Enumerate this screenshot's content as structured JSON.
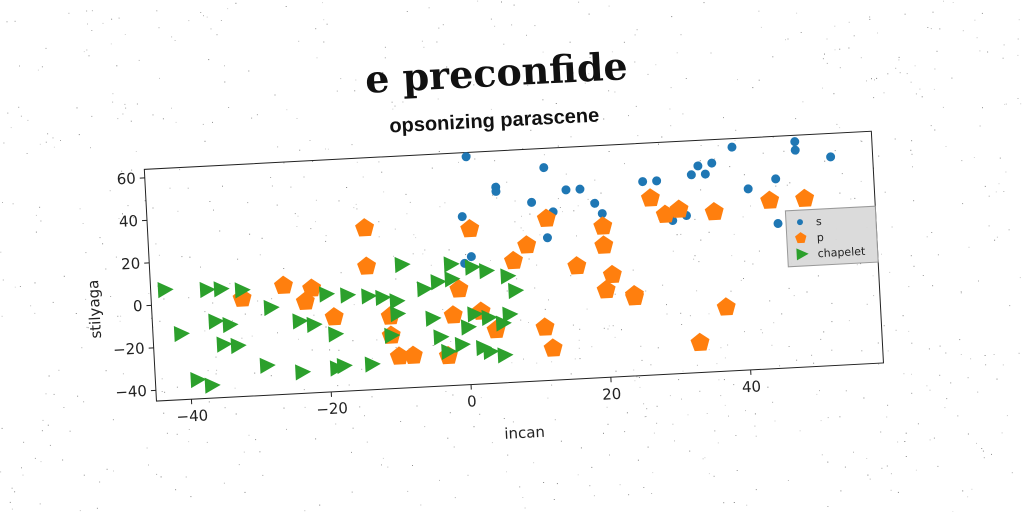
{
  "chart_data": {
    "type": "scatter",
    "suptitle": "e preconfide",
    "title": "opsonizing parascene",
    "xlabel": "incan",
    "ylabel": "stilyaga",
    "xlim": [
      -45,
      59
    ],
    "ylim": [
      -45,
      64
    ],
    "xticks": [
      -40,
      -20,
      0,
      20,
      40
    ],
    "yticks": [
      -40,
      -20,
      0,
      20,
      40,
      60
    ],
    "grid": false,
    "legend_position": "right",
    "series": [
      {
        "name": "s",
        "marker": "circle",
        "color": "#1f77b4",
        "points": [
          [
            1,
            62
          ],
          [
            12,
            55
          ],
          [
            39,
            60
          ],
          [
            48,
            61
          ],
          [
            53,
            53
          ],
          [
            48,
            57
          ],
          [
            5,
            47
          ],
          [
            5,
            45
          ],
          [
            15,
            44
          ],
          [
            17,
            44
          ],
          [
            26,
            46
          ],
          [
            28,
            46
          ],
          [
            33,
            48
          ],
          [
            35,
            48
          ],
          [
            36,
            53
          ],
          [
            34,
            52
          ],
          [
            45,
            44
          ],
          [
            10,
            39
          ],
          [
            19,
            37
          ],
          [
            13,
            34
          ],
          [
            0,
            34
          ],
          [
            20,
            32
          ],
          [
            30,
            27
          ],
          [
            32,
            29
          ],
          [
            41,
            40
          ],
          [
            0,
            12
          ],
          [
            1,
            15
          ],
          [
            12,
            22
          ],
          [
            45,
            23
          ]
        ]
      },
      {
        "name": "p",
        "marker": "pentagon",
        "color": "#ff7f0e",
        "points": [
          [
            -14,
            31
          ],
          [
            1,
            28
          ],
          [
            12,
            31
          ],
          [
            20,
            26
          ],
          [
            27,
            38
          ],
          [
            29,
            30
          ],
          [
            31,
            32
          ],
          [
            36,
            30
          ],
          [
            44,
            34
          ],
          [
            49,
            34
          ],
          [
            9,
            19
          ],
          [
            7,
            12
          ],
          [
            20,
            17
          ],
          [
            -14,
            13
          ],
          [
            -32,
            1
          ],
          [
            -26,
            6
          ],
          [
            -22,
            4
          ],
          [
            -23,
            -2
          ],
          [
            -19,
            -10
          ],
          [
            -11,
            -11
          ],
          [
            -2,
            -12
          ],
          [
            -1,
            0
          ],
          [
            2,
            -11
          ],
          [
            16,
            8
          ],
          [
            21,
            3
          ],
          [
            20,
            -4
          ],
          [
            24,
            -7
          ],
          [
            24,
            -8
          ],
          [
            37,
            -15
          ],
          [
            -11,
            -20
          ],
          [
            4,
            -20
          ],
          [
            -10,
            -30
          ],
          [
            -8,
            -30
          ],
          [
            -3,
            -31
          ],
          [
            11,
            -20
          ],
          [
            12,
            -30
          ],
          [
            33,
            -31
          ]
        ]
      },
      {
        "name": "chapelet",
        "marker": "triangle-right",
        "color": "#2ca02c",
        "points": [
          [
            -43,
            7
          ],
          [
            -37,
            6
          ],
          [
            -35,
            6
          ],
          [
            -32,
            5
          ],
          [
            -9,
            13
          ],
          [
            -2,
            12
          ],
          [
            1,
            10
          ],
          [
            3,
            8
          ],
          [
            6,
            5
          ],
          [
            -4,
            4
          ],
          [
            -2,
            5
          ],
          [
            -6,
            1
          ],
          [
            -17,
            0
          ],
          [
            -20,
            1
          ],
          [
            -14,
            -1
          ],
          [
            -12,
            -2
          ],
          [
            -10,
            -4
          ],
          [
            -28,
            -4
          ],
          [
            -36,
            -9
          ],
          [
            -34,
            -11
          ],
          [
            -41,
            -14
          ],
          [
            -35,
            -20
          ],
          [
            -33,
            -21
          ],
          [
            -24,
            -11
          ],
          [
            -22,
            -13
          ],
          [
            -19,
            -18
          ],
          [
            -10,
            -10
          ],
          [
            -11,
            -20
          ],
          [
            -4,
            -22
          ],
          [
            -1,
            -26
          ],
          [
            -3,
            -29
          ],
          [
            -29,
            -31
          ],
          [
            -24,
            -35
          ],
          [
            -19,
            -34
          ],
          [
            -18,
            -33
          ],
          [
            -14,
            -33
          ],
          [
            2,
            -28
          ],
          [
            3,
            -30
          ],
          [
            5,
            -32
          ],
          [
            -39,
            -36
          ],
          [
            -37,
            -39
          ],
          [
            1,
            -12
          ],
          [
            3,
            -14
          ],
          [
            5,
            -17
          ],
          [
            6,
            -13
          ],
          [
            7,
            -2
          ],
          [
            -5,
            -13
          ],
          [
            0,
            -18
          ]
        ]
      }
    ]
  }
}
